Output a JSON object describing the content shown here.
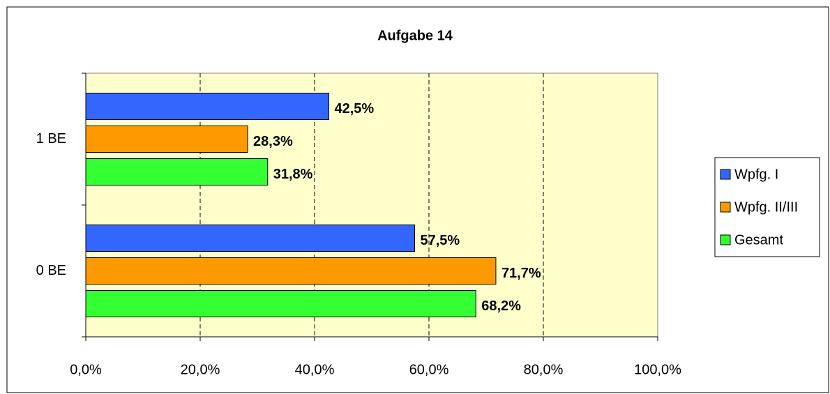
{
  "chart_data": {
    "type": "hbar",
    "title": "Aufgabe 14",
    "categories": [
      "1 BE",
      "0 BE"
    ],
    "series": [
      {
        "name": "Wpfg. I",
        "color": "#3366ff",
        "values": [
          42.5,
          57.5
        ],
        "value_labels": [
          "42,5%",
          "57,5%"
        ]
      },
      {
        "name": "Wpfg. II/III",
        "color": "#ff9900",
        "values": [
          28.3,
          71.7
        ],
        "value_labels": [
          "28,3%",
          "71,7%"
        ]
      },
      {
        "name": "Gesamt",
        "color": "#33ff33",
        "values": [
          31.8,
          68.2
        ],
        "value_labels": [
          "31,8%",
          "68,2%"
        ]
      }
    ],
    "xlim": [
      0,
      100
    ],
    "xticks": [
      {
        "value": 0,
        "label": "0,0%"
      },
      {
        "value": 20,
        "label": "20,0%"
      },
      {
        "value": 40,
        "label": "40,0%"
      },
      {
        "value": 60,
        "label": "60,0%"
      },
      {
        "value": 80,
        "label": "80,0%"
      },
      {
        "value": 100,
        "label": "100,0%"
      }
    ],
    "grid": true,
    "legend": "right"
  }
}
